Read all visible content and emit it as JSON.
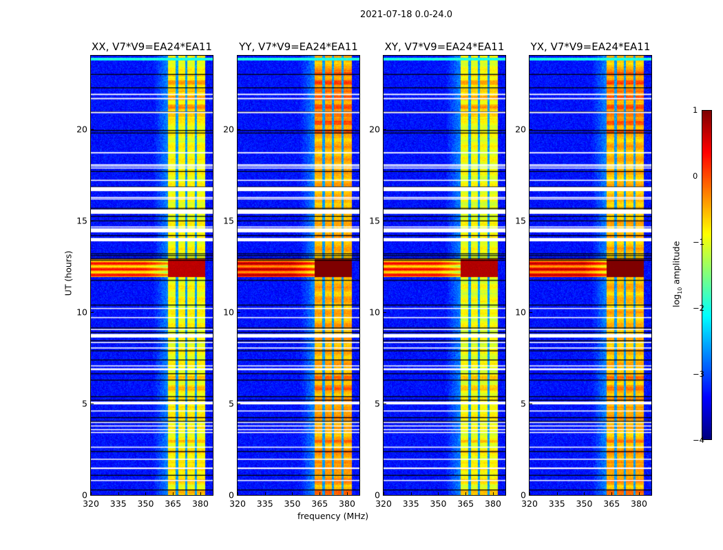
{
  "suptitle": "2021-07-18 0.0-24.0",
  "xlabel": "frequency (MHz)",
  "ylabel": "UT (hours)",
  "colorbar": {
    "label_prefix": "log",
    "label_sub": "10",
    "label_suffix": " amplitude",
    "ticks": [
      "1",
      "0",
      "−1",
      "−2",
      "−3",
      "−4"
    ],
    "tick_values": [
      1,
      0,
      -1,
      -2,
      -3,
      -4
    ],
    "range": [
      -4,
      1
    ],
    "colormap": "jet"
  },
  "chart_data": {
    "type": "heatmap",
    "title": "2021-07-18 0.0-24.0",
    "xlabel": "frequency (MHz)",
    "ylabel": "UT (hours)",
    "xlim": [
      320,
      386.8
    ],
    "ylim": [
      0,
      24
    ],
    "xticks": [
      "320",
      "335",
      "350",
      "365",
      "380"
    ],
    "xtick_values": [
      320,
      335,
      350,
      365,
      380
    ],
    "yticks": [
      "0",
      "5",
      "10",
      "15",
      "20"
    ],
    "ytick_values": [
      0,
      5,
      10,
      15,
      20
    ],
    "value_range": [
      -4,
      1
    ],
    "background_level": -3.3,
    "signal_band_mhz": [
      362.3,
      382.5
    ],
    "band_gaps_mhz": [
      367.2,
      372.4,
      377.6
    ],
    "rfi_interval_hours": [
      11.9,
      12.9
    ],
    "flagged_white_hours": [
      [
        21.85,
        21.92
      ],
      [
        21.62,
        21.69
      ],
      [
        20.86,
        20.93
      ],
      [
        18.66,
        18.73
      ],
      [
        18.03,
        18.07
      ],
      [
        17.96,
        18.0
      ],
      [
        17.85,
        17.89
      ],
      [
        17.16,
        17.22
      ],
      [
        16.6,
        16.82
      ],
      [
        16.24,
        16.28
      ],
      [
        16.16,
        16.2
      ],
      [
        15.36,
        15.6
      ],
      [
        14.63,
        14.67
      ],
      [
        14.35,
        14.57
      ],
      [
        13.86,
        14.04
      ],
      [
        10.18,
        10.22
      ],
      [
        9.68,
        9.72
      ],
      [
        9.03,
        9.07
      ],
      [
        8.6,
        8.8
      ],
      [
        8.3,
        8.36
      ],
      [
        8.0,
        8.06
      ],
      [
        7.04,
        7.08
      ],
      [
        6.82,
        6.92
      ],
      [
        4.95,
        5.1
      ],
      [
        4.58,
        4.62
      ],
      [
        3.95,
        3.99
      ],
      [
        3.75,
        3.8
      ],
      [
        3.55,
        3.6
      ],
      [
        3.4,
        3.44
      ],
      [
        2.6,
        2.64
      ],
      [
        1.95,
        1.98
      ],
      [
        1.42,
        1.5
      ],
      [
        0.78,
        0.82
      ]
    ],
    "flagged_black_hours": [
      23.0,
      22.27,
      20.95,
      19.94,
      19.8,
      17.7,
      16.85,
      16.75,
      15.68,
      15.6,
      15.25,
      15.0,
      14.2,
      13.2,
      13.1,
      12.95,
      12.85,
      11.75,
      10.4,
      9.15,
      8.9,
      8.45,
      7.9,
      7.4,
      6.65,
      6.3,
      5.4,
      5.2,
      4.25,
      4.05,
      2.4,
      1.1,
      0.3
    ],
    "series": [
      {
        "name": "XX, V7*V9=EA24*EA11",
        "band_level": -0.9,
        "rfi_level": 0.3,
        "band_peak_hours": [
          20.5,
          23.0
        ]
      },
      {
        "name": "YY, V7*V9=EA24*EA11",
        "band_level": -0.5,
        "rfi_level": 0.7,
        "band_peak_hours": [
          19.8,
          23.2
        ]
      },
      {
        "name": "XY, V7*V9=EA24*EA11",
        "band_level": -0.95,
        "rfi_level": 0.35,
        "band_peak_hours": [
          20.5,
          23.0
        ]
      },
      {
        "name": "YX, V7*V9=EA24*EA11",
        "band_level": -0.55,
        "rfi_level": 0.65,
        "band_peak_hours": [
          19.8,
          23.2
        ]
      }
    ]
  }
}
